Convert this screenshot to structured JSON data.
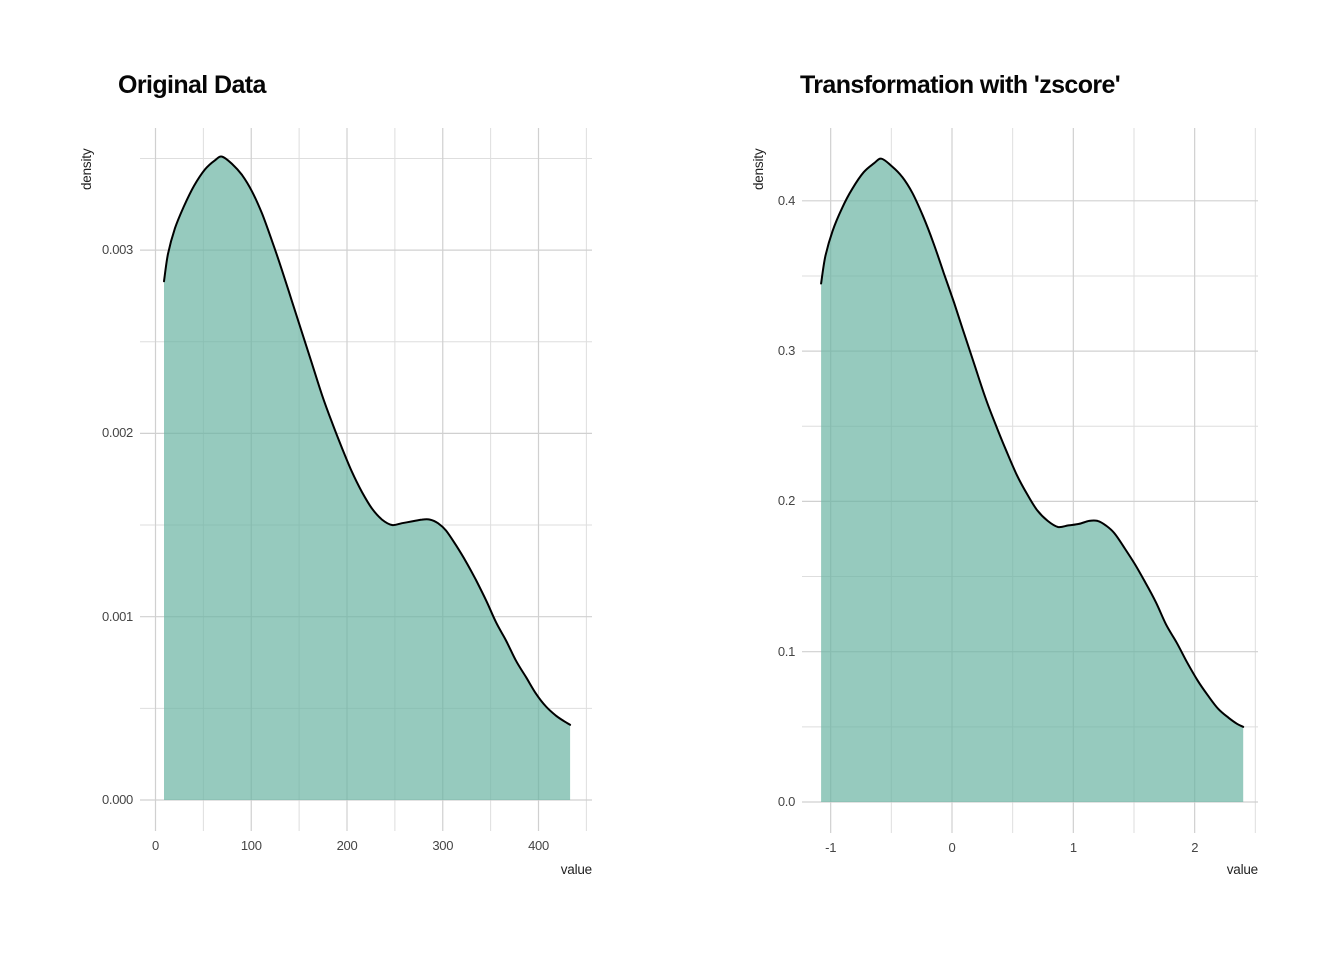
{
  "figure": {
    "background_color": "#ffffff",
    "n_panels": 2
  },
  "style": {
    "fill_color": "#69b3a2",
    "fill_opacity": 0.7,
    "curve_color": "#000000",
    "grid_major_color": "#d0d0d0",
    "grid_minor_color": "#dedede",
    "tick_label_color": "#454545",
    "title_color": "#060606"
  },
  "chart_data": [
    {
      "type": "area",
      "title": "Original Data",
      "xlabel": "value",
      "ylabel": "density",
      "legend": "none",
      "grid": "on",
      "xlim": [
        -16.2,
        455.9
      ],
      "ylim": [
        0,
        0.003666
      ],
      "x_tick_labels": [
        "0",
        "100",
        "200",
        "300",
        "400"
      ],
      "x_tick_values": [
        0,
        100,
        200,
        300,
        400
      ],
      "x_minor_gridlines": [
        50,
        150,
        250,
        350,
        450
      ],
      "y_tick_labels": [
        "0.000",
        "0.001",
        "0.002",
        "0.003"
      ],
      "y_tick_values": [
        0,
        0.001,
        0.002,
        0.003
      ],
      "y_minor_gridlines": [
        0.0005,
        0.0015,
        0.0025,
        0.0035
      ],
      "points": [
        [
          8.9,
          0.00283
        ],
        [
          13.1,
          0.00298
        ],
        [
          20.4,
          0.00312
        ],
        [
          29.8,
          0.00324
        ],
        [
          40.2,
          0.00335
        ],
        [
          51.7,
          0.00344
        ],
        [
          62.1,
          0.00349
        ],
        [
          69.5,
          0.00351
        ],
        [
          79.9,
          0.00347
        ],
        [
          90.3,
          0.00341
        ],
        [
          100.8,
          0.00332
        ],
        [
          111.2,
          0.0032
        ],
        [
          121.7,
          0.00305
        ],
        [
          132.1,
          0.00289
        ],
        [
          142.6,
          0.00272
        ],
        [
          153.0,
          0.00255
        ],
        [
          163.4,
          0.00238
        ],
        [
          173.9,
          0.00221
        ],
        [
          184.3,
          0.00206
        ],
        [
          194.8,
          0.00192
        ],
        [
          205.2,
          0.00179
        ],
        [
          215.7,
          0.00168
        ],
        [
          226.1,
          0.00159
        ],
        [
          236.6,
          0.00153
        ],
        [
          247.0,
          0.0015
        ],
        [
          257.4,
          0.00151
        ],
        [
          267.9,
          0.00152
        ],
        [
          278.3,
          0.00153
        ],
        [
          286.7,
          0.00153
        ],
        [
          295.0,
          0.00151
        ],
        [
          303.4,
          0.00147
        ],
        [
          313.8,
          0.00139
        ],
        [
          324.3,
          0.0013
        ],
        [
          334.7,
          0.0012
        ],
        [
          345.2,
          0.00109
        ],
        [
          355.6,
          0.00097
        ],
        [
          366.1,
          0.00087
        ],
        [
          376.5,
          0.00076
        ],
        [
          387.0,
          0.00067
        ],
        [
          397.4,
          0.00058
        ],
        [
          407.8,
          0.00051
        ],
        [
          418.3,
          0.00046
        ],
        [
          426.7,
          0.00043
        ],
        [
          433.0,
          0.00041
        ]
      ]
    },
    {
      "type": "area",
      "title": "Transformation with 'zscore'",
      "xlabel": "value",
      "ylabel": "density",
      "legend": "none",
      "grid": "on",
      "xlim": [
        -1.24,
        2.52
      ],
      "ylim": [
        0,
        0.448
      ],
      "x_tick_labels": [
        "-1",
        "0",
        "1",
        "2"
      ],
      "x_tick_values": [
        -1,
        0,
        1,
        2
      ],
      "x_minor_gridlines": [
        -0.5,
        0.5,
        1.5,
        2.5
      ],
      "y_tick_labels": [
        "0.0",
        "0.1",
        "0.2",
        "0.3",
        "0.4"
      ],
      "y_tick_values": [
        0,
        0.1,
        0.2,
        0.3,
        0.4
      ],
      "y_minor_gridlines": [
        0.05,
        0.15,
        0.25,
        0.35
      ],
      "points": [
        [
          -1.079,
          0.345
        ],
        [
          -1.044,
          0.363
        ],
        [
          -0.984,
          0.38
        ],
        [
          -0.907,
          0.395
        ],
        [
          -0.822,
          0.408
        ],
        [
          -0.728,
          0.419
        ],
        [
          -0.642,
          0.425
        ],
        [
          -0.582,
          0.428
        ],
        [
          -0.496,
          0.423
        ],
        [
          -0.411,
          0.416
        ],
        [
          -0.325,
          0.405
        ],
        [
          -0.24,
          0.39
        ],
        [
          -0.153,
          0.372
        ],
        [
          -0.068,
          0.352
        ],
        [
          0.018,
          0.332
        ],
        [
          0.103,
          0.311
        ],
        [
          0.189,
          0.29
        ],
        [
          0.275,
          0.269
        ],
        [
          0.36,
          0.251
        ],
        [
          0.446,
          0.234
        ],
        [
          0.532,
          0.218
        ],
        [
          0.618,
          0.205
        ],
        [
          0.703,
          0.194
        ],
        [
          0.789,
          0.187
        ],
        [
          0.874,
          0.183
        ],
        [
          0.96,
          0.184
        ],
        [
          1.046,
          0.185
        ],
        [
          1.131,
          0.187
        ],
        [
          1.2,
          0.187
        ],
        [
          1.268,
          0.184
        ],
        [
          1.337,
          0.179
        ],
        [
          1.422,
          0.169
        ],
        [
          1.509,
          0.158
        ],
        [
          1.594,
          0.146
        ],
        [
          1.68,
          0.133
        ],
        [
          1.765,
          0.118
        ],
        [
          1.852,
          0.106
        ],
        [
          1.937,
          0.093
        ],
        [
          2.023,
          0.081
        ],
        [
          2.108,
          0.071
        ],
        [
          2.194,
          0.062
        ],
        [
          2.28,
          0.056
        ],
        [
          2.349,
          0.052
        ],
        [
          2.4,
          0.05
        ]
      ]
    }
  ]
}
